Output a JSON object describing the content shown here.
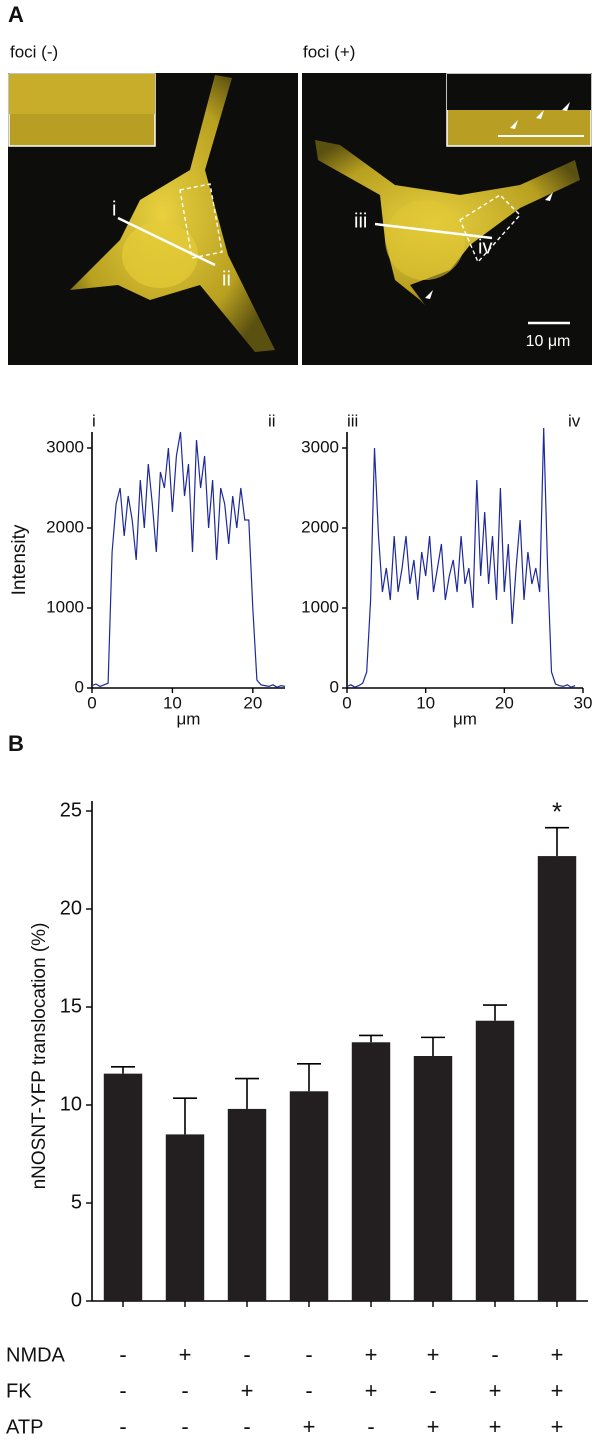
{
  "panel_labels": [
    "A",
    "B"
  ],
  "images": [
    {
      "title": "foci (-)",
      "profile_start": "i",
      "profile_end": "ii"
    },
    {
      "title": "foci (+)",
      "profile_start": "iii",
      "profile_end": "iv",
      "scale_bar": "10 μm"
    }
  ],
  "chart_data": [
    {
      "type": "line",
      "ylabel": "Intensity",
      "xlabel": "μm",
      "color": "#1f2a9a",
      "x": [
        0,
        0.5,
        1,
        1.5,
        2,
        2.5,
        3,
        3.5,
        4,
        4.5,
        5,
        5.5,
        6,
        6.5,
        7,
        7.5,
        8,
        8.5,
        9,
        9.5,
        10,
        10.5,
        11,
        11.5,
        12,
        12.5,
        13,
        13.5,
        14,
        14.5,
        15,
        15.5,
        16,
        16.5,
        17,
        17.5,
        18,
        18.5,
        19,
        19.5,
        20,
        20.5,
        21,
        21.5,
        22,
        22.5,
        23,
        23.5,
        24
      ],
      "values": [
        30,
        50,
        20,
        40,
        60,
        1700,
        2300,
        2500,
        1900,
        2400,
        2100,
        1600,
        2600,
        2000,
        2800,
        2300,
        1700,
        2700,
        2500,
        3000,
        2200,
        2900,
        3200,
        2400,
        2800,
        1700,
        3100,
        2500,
        2900,
        2000,
        2600,
        1600,
        2500,
        2300,
        1800,
        2400,
        2000,
        2500,
        2100,
        2100,
        1000,
        100,
        40,
        30,
        20,
        40,
        10,
        30,
        20
      ],
      "xlim": [
        0,
        24
      ],
      "xticks": [
        0,
        10,
        20
      ],
      "ylim": [
        0,
        3200
      ],
      "yticks": [
        0,
        1000,
        2000,
        3000
      ]
    },
    {
      "type": "line",
      "xlabel": "μm",
      "color": "#1f2a9a",
      "x": [
        0,
        0.5,
        1,
        1.5,
        2,
        2.5,
        3,
        3.5,
        4,
        4.5,
        5,
        5.5,
        6,
        6.5,
        7,
        7.5,
        8,
        8.5,
        9,
        9.5,
        10,
        10.5,
        11,
        11.5,
        12,
        12.5,
        13,
        13.5,
        14,
        14.5,
        15,
        15.5,
        16,
        16.5,
        17,
        17.5,
        18,
        18.5,
        19,
        19.5,
        20,
        20.5,
        21,
        21.5,
        22,
        22.5,
        23,
        23.5,
        24,
        24.5,
        25,
        25.5,
        26,
        26.5,
        27,
        27.5,
        28,
        28.5,
        29
      ],
      "values": [
        20,
        40,
        10,
        30,
        60,
        200,
        1100,
        3000,
        1900,
        1200,
        1500,
        1100,
        1900,
        1200,
        1500,
        1900,
        1300,
        1600,
        1100,
        1700,
        1400,
        1900,
        1200,
        1500,
        1800,
        1100,
        1400,
        1600,
        1200,
        1900,
        1300,
        1500,
        1000,
        2600,
        1400,
        2200,
        1300,
        1900,
        1100,
        2500,
        1200,
        1800,
        800,
        1500,
        2100,
        1100,
        1700,
        1300,
        1500,
        1200,
        3250,
        1500,
        200,
        50,
        30,
        20,
        40,
        10,
        30
      ],
      "xlim": [
        0,
        30
      ],
      "xticks": [
        0,
        10,
        20,
        30
      ],
      "ylim": [
        0,
        3200
      ],
      "yticks": [
        0,
        1000,
        2000,
        3000
      ]
    },
    {
      "type": "bar",
      "ylabel": "nNOSNT-YFP translocation (%)",
      "color": "#231f20",
      "values": [
        11.6,
        8.5,
        9.8,
        10.7,
        13.2,
        12.5,
        14.3,
        22.7
      ],
      "errors": [
        0.35,
        1.85,
        1.55,
        1.4,
        0.35,
        0.95,
        0.8,
        1.45
      ],
      "annotations": [
        {
          "index": 7,
          "text": "*"
        }
      ],
      "ylim": [
        0,
        25
      ],
      "yticks": [
        0,
        5,
        10,
        15,
        20,
        25
      ],
      "conditions": [
        {
          "name": "NMDA",
          "signs": [
            "-",
            "+",
            "-",
            "-",
            "+",
            "+",
            "-",
            "+"
          ]
        },
        {
          "name": "FK",
          "signs": [
            "-",
            "-",
            "+",
            "-",
            "+",
            "-",
            "+",
            "+"
          ]
        },
        {
          "name": "ATP",
          "signs": [
            "-",
            "-",
            "-",
            "+",
            "-",
            "+",
            "+",
            "+"
          ]
        }
      ]
    }
  ]
}
